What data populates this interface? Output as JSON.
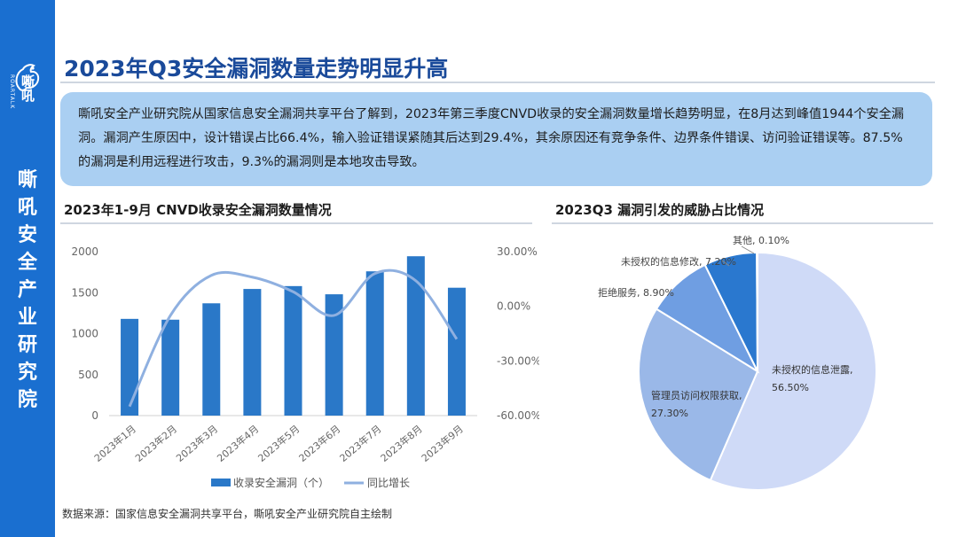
{
  "brand": {
    "logo_name": "嘶吼",
    "logo_sub": "ROARTALK",
    "sidebar_title": "嘶吼安全产业研究院"
  },
  "page": {
    "title": "2023年Q3安全漏洞数量走势明显升高",
    "summary": "嘶吼安全产业研究院从国家信息安全漏洞共享平台了解到，2023年第三季度CNVD收录的安全漏洞数量增长趋势明显，在8月达到峰值1944个安全漏洞。漏洞产生原因中，设计错误占比66.4%，输入验证错误紧随其后达到29.4%，其余原因还有竞争条件、边界条件错误、访问验证错误等。87.5%的漏洞是利用远程进行攻击，9.3%的漏洞则是本地攻击导致。",
    "source": "数据来源：国家信息安全漏洞共享平台，嘶吼安全产业研究院自主绘制"
  },
  "colors": {
    "sidebar": "#1a6fd0",
    "bar": "#2a78c8",
    "line": "#8fb0e0",
    "pie": [
      "#cfdaf7",
      "#9ab8e8",
      "#6f9ee2",
      "#2a78cf",
      "#1a5fb8"
    ]
  },
  "chart_data": [
    {
      "type": "bar",
      "title": "2023年1-9月 CNVD收录安全漏洞数量情况",
      "categories": [
        "2023年1月",
        "2023年2月",
        "2023年3月",
        "2023年4月",
        "2023年5月",
        "2023年6月",
        "2023年7月",
        "2023年8月",
        "2023年9月"
      ],
      "series": [
        {
          "name": "收录安全漏洞（个）",
          "type": "bar",
          "axis": "left",
          "values": [
            1180,
            1170,
            1370,
            1545,
            1580,
            1480,
            1760,
            1944,
            1560
          ]
        },
        {
          "name": "同比增长",
          "type": "line",
          "axis": "right",
          "values": [
            -55,
            -5,
            17,
            16,
            8,
            -5,
            18,
            14,
            -18
          ]
        }
      ],
      "ylim": [
        0,
        2000
      ],
      "yticks": [
        "0",
        "500",
        "1000",
        "1500",
        "2000"
      ],
      "y2lim": [
        -60,
        30
      ],
      "y2ticks": [
        "-60.00%",
        "-30.00%",
        "0.00%",
        "30.00%"
      ],
      "legend": "bottom"
    },
    {
      "type": "pie",
      "title": "2023Q3 漏洞引发的威胁占比情况",
      "slices": [
        {
          "label": "未授权的信息泄露,",
          "value_label": "56.50%",
          "value": 56.5
        },
        {
          "label": "管理员访问权限获取,",
          "value_label": "27.30%",
          "value": 27.3
        },
        {
          "label": "拒绝服务, 8.90%",
          "value_label": "",
          "value": 8.9
        },
        {
          "label": "未授权的信息修改, 7.20%",
          "value_label": "",
          "value": 7.2
        },
        {
          "label": "其他, 0.10%",
          "value_label": "",
          "value": 0.1
        }
      ]
    }
  ]
}
